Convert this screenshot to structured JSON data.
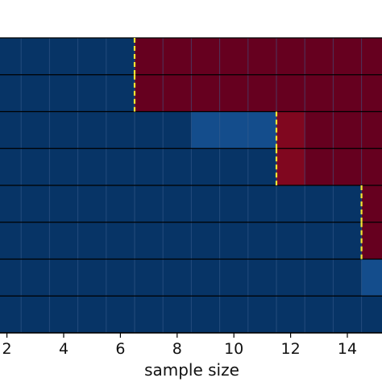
{
  "chart_data": {
    "type": "heatmap",
    "title": "",
    "xlabel": "sample size",
    "ylabel": "",
    "xlim": [
      1.5,
      15.5
    ],
    "x_tick_values": [
      2,
      4,
      6,
      8,
      10,
      12,
      14
    ],
    "x_tick_labels": [
      "2",
      "4",
      "6",
      "8",
      "10",
      "12",
      "14"
    ],
    "x_cells": [
      2,
      3,
      4,
      5,
      6,
      7,
      8,
      9,
      10,
      11,
      12,
      13,
      14,
      15
    ],
    "rows": [
      {
        "cells": [
          "b",
          "b",
          "b",
          "b",
          "b",
          "r",
          "r",
          "r",
          "r",
          "r",
          "r",
          "r",
          "r",
          "r"
        ],
        "threshold": 6.5
      },
      {
        "cells": [
          "b",
          "b",
          "b",
          "b",
          "b",
          "r",
          "r",
          "r",
          "r",
          "r",
          "r",
          "r",
          "r",
          "r"
        ],
        "threshold": 6.5
      },
      {
        "cells": [
          "b",
          "b",
          "b",
          "b",
          "b",
          "b",
          "b",
          "m",
          "m",
          "m",
          "rl",
          "r",
          "r",
          "r"
        ],
        "threshold": 11.5
      },
      {
        "cells": [
          "b",
          "b",
          "b",
          "b",
          "b",
          "b",
          "b",
          "b",
          "b",
          "b",
          "rl",
          "r",
          "r",
          "r"
        ],
        "threshold": 11.5
      },
      {
        "cells": [
          "b",
          "b",
          "b",
          "b",
          "b",
          "b",
          "b",
          "b",
          "b",
          "b",
          "b",
          "b",
          "b",
          "r"
        ],
        "threshold": 14.5
      },
      {
        "cells": [
          "b",
          "b",
          "b",
          "b",
          "b",
          "b",
          "b",
          "b",
          "b",
          "b",
          "b",
          "b",
          "b",
          "r"
        ],
        "threshold": 14.5
      },
      {
        "cells": [
          "b",
          "b",
          "b",
          "b",
          "b",
          "b",
          "b",
          "b",
          "b",
          "b",
          "b",
          "b",
          "b",
          "m"
        ],
        "threshold": null
      },
      {
        "cells": [
          "b",
          "b",
          "b",
          "b",
          "b",
          "b",
          "b",
          "b",
          "b",
          "b",
          "b",
          "b",
          "b",
          "b"
        ],
        "threshold": null
      }
    ],
    "colors": {
      "b": "#073466",
      "m": "#144d8c",
      "r": "#66001f",
      "rl": "#80071f",
      "threshold": "#f5e633",
      "row_border": "#000000",
      "grid": "#3c5f8f"
    },
    "grid": true
  }
}
